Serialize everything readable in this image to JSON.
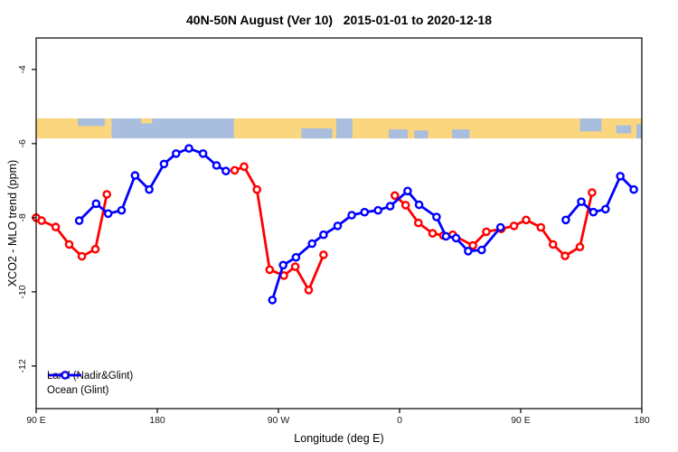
{
  "chart_data": {
    "type": "line",
    "title": "40N-50N August (Ver 10)   2015-01-01 to 2020-12-18",
    "xlabel": "Longitude (deg E)",
    "ylabel": "XCO2 - MLO trend (ppm)",
    "xlim": [
      90,
      540
    ],
    "ylim": [
      -13.15,
      -3.15
    ],
    "grid": false,
    "legend_position": "bottom-left",
    "x_ticks": {
      "values": [
        90,
        180,
        270,
        360,
        450,
        540
      ],
      "labels": [
        "90 E",
        "180",
        "90 W",
        "0",
        "90 E",
        "180"
      ]
    },
    "y_ticks": {
      "values": [
        -4,
        -6,
        -8,
        -10,
        -12
      ],
      "labels": [
        "-4",
        "-6",
        "-8",
        "-10",
        "-12"
      ]
    },
    "map_band": {
      "land_color": "#FAD67E",
      "ocean_color": "#A9BDDE",
      "top_value": -5.32,
      "bottom_value": -5.86,
      "segments": [
        {
          "from": 90,
          "to": 146,
          "type": "land"
        },
        {
          "from": 146,
          "to": 237,
          "type": "ocean"
        },
        {
          "from": 237,
          "to": 313,
          "type": "land"
        },
        {
          "from": 313,
          "to": 325,
          "type": "ocean"
        },
        {
          "from": 325,
          "to": 540,
          "type": "land"
        }
      ],
      "patches": [
        {
          "from": 121,
          "to": 141,
          "top": 0,
          "h": 0.38,
          "type": "ocean"
        },
        {
          "from": 168,
          "to": 176,
          "top": 0,
          "h": 0.25,
          "type": "land"
        },
        {
          "from": 287,
          "to": 310,
          "top": 0.5,
          "h": 0.5,
          "type": "ocean"
        },
        {
          "from": 352,
          "to": 366,
          "top": 0.55,
          "h": 0.45,
          "type": "ocean"
        },
        {
          "from": 371,
          "to": 381,
          "top": 0.6,
          "h": 0.4,
          "type": "ocean"
        },
        {
          "from": 399,
          "to": 412,
          "top": 0.55,
          "h": 0.45,
          "type": "ocean"
        },
        {
          "from": 494,
          "to": 510,
          "top": 0,
          "h": 0.65,
          "type": "ocean"
        },
        {
          "from": 521,
          "to": 532,
          "top": 0.35,
          "h": 0.4,
          "type": "ocean"
        },
        {
          "from": 536,
          "to": 540,
          "top": 0.3,
          "h": 0.7,
          "type": "ocean"
        }
      ]
    },
    "series": [
      {
        "name": "Land (Nadir&Glint)",
        "color": "#FF0000",
        "marker": "open-circle",
        "segments": [
          [
            [
              90,
              -8.0
            ],
            [
              94,
              -8.08
            ],
            [
              104.5,
              -8.25
            ],
            [
              114.5,
              -8.72
            ],
            [
              124,
              -9.04
            ],
            [
              134,
              -8.85
            ],
            [
              142.5,
              -7.37
            ]
          ],
          [
            [
              237.5,
              -6.72
            ],
            [
              244.5,
              -6.62
            ],
            [
              254,
              -7.24
            ],
            [
              263.5,
              -9.4
            ],
            [
              274,
              -9.56
            ],
            [
              282.5,
              -9.32
            ],
            [
              292.5,
              -9.95
            ],
            [
              303.5,
              -9.0
            ]
          ],
          [
            [
              356.5,
              -7.4
            ],
            [
              364.5,
              -7.66
            ],
            [
              374,
              -8.14
            ],
            [
              384.5,
              -8.42
            ],
            [
              392.5,
              -8.48
            ],
            [
              399.5,
              -8.46
            ],
            [
              414.5,
              -8.75
            ],
            [
              424.5,
              -8.38
            ],
            [
              435.5,
              -8.3
            ],
            [
              445,
              -8.22
            ],
            [
              454,
              -8.06
            ],
            [
              465,
              -8.26
            ],
            [
              474,
              -8.72
            ],
            [
              483,
              -9.03
            ],
            [
              494,
              -8.79
            ],
            [
              503,
              -7.32
            ]
          ]
        ]
      },
      {
        "name": "Ocean (Glint)",
        "color": "#0000FF",
        "marker": "open-circle",
        "segments": [
          [
            [
              122,
              -8.08
            ],
            [
              134.5,
              -7.62
            ],
            [
              143.5,
              -7.89
            ],
            [
              153.5,
              -7.8
            ],
            [
              163.5,
              -6.86
            ],
            [
              174,
              -7.24
            ],
            [
              185,
              -6.55
            ],
            [
              194,
              -6.27
            ],
            [
              203.5,
              -6.13
            ],
            [
              214,
              -6.27
            ],
            [
              224,
              -6.59
            ],
            [
              231,
              -6.74
            ]
          ],
          [
            [
              265.5,
              -10.22
            ],
            [
              273.5,
              -9.28
            ],
            [
              283,
              -9.07
            ],
            [
              295,
              -8.7
            ],
            [
              303.5,
              -8.46
            ],
            [
              314,
              -8.22
            ],
            [
              324.5,
              -7.93
            ],
            [
              334,
              -7.85
            ],
            [
              344,
              -7.8
            ],
            [
              353,
              -7.69
            ],
            [
              366,
              -7.28
            ],
            [
              374.5,
              -7.65
            ],
            [
              387.5,
              -7.98
            ],
            [
              394.5,
              -8.5
            ],
            [
              402,
              -8.55
            ],
            [
              411,
              -8.9
            ],
            [
              421,
              -8.87
            ],
            [
              435,
              -8.26
            ]
          ],
          [
            [
              483.5,
              -8.06
            ],
            [
              495,
              -7.57
            ],
            [
              504,
              -7.85
            ],
            [
              513,
              -7.77
            ],
            [
              524,
              -6.88
            ],
            [
              534,
              -7.24
            ]
          ]
        ]
      }
    ]
  }
}
